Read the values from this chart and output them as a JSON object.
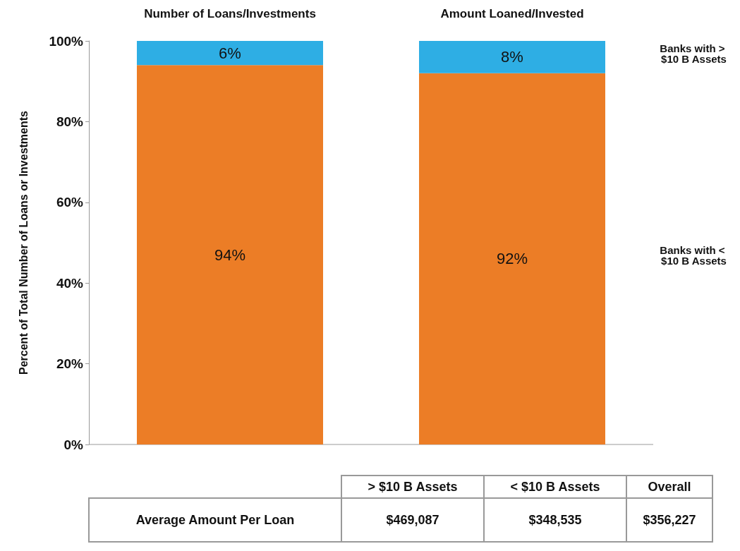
{
  "chart_data": {
    "type": "bar",
    "stacked": true,
    "ylabel": "Percent of Total Number of Loans or Investments",
    "categories": [
      "Number of Loans/Investments",
      "Amount Loaned/Invested"
    ],
    "series": [
      {
        "name": "Banks with < $10 B Assets",
        "color": "#ec7d26",
        "values": [
          94,
          92
        ],
        "value_labels": [
          "94%",
          "92%"
        ]
      },
      {
        "name": "Banks with > $10 B Assets",
        "color": "#2eaee4",
        "values": [
          6,
          8
        ],
        "value_labels": [
          "6%",
          "8%"
        ]
      }
    ],
    "ylim": [
      0,
      100
    ],
    "yticks": [
      {
        "value": 0,
        "label": "0%"
      },
      {
        "value": 20,
        "label": "20%"
      },
      {
        "value": 40,
        "label": "40%"
      },
      {
        "value": 60,
        "label": "60%"
      },
      {
        "value": 80,
        "label": "80%"
      },
      {
        "value": 100,
        "label": "100%"
      }
    ],
    "grid": false,
    "legend": false,
    "annotations": [
      "> $10 B Assets",
      "< $10 B Assets",
      "Overall",
      "Average Amount Per Loan",
      "$469,087",
      "$348,535",
      "$356,227"
    ]
  }
}
